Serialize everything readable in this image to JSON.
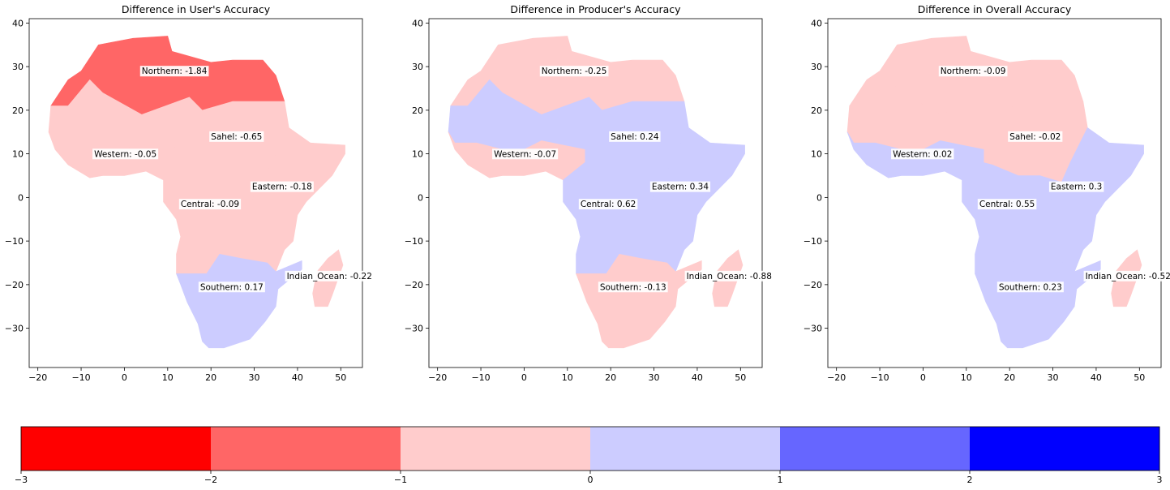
{
  "figure": {
    "colors": [
      "#ff0000",
      "#ff6666",
      "#ffcccc",
      "#ccccff",
      "#6666ff",
      "#0000ff"
    ],
    "colorbar": {
      "bounds": [
        -3,
        -2,
        -1,
        0,
        1,
        2,
        3
      ],
      "tick_labels": [
        "−3",
        "−2",
        "−1",
        "0",
        "1",
        "2",
        "3"
      ]
    },
    "xticks": [
      "−20",
      "−10",
      "0",
      "10",
      "20",
      "30",
      "40",
      "50"
    ],
    "yticks": [
      "40",
      "30",
      "20",
      "10",
      "0",
      "−10",
      "−20",
      "−30"
    ]
  },
  "chart_data": [
    {
      "type": "choropleth",
      "title": "Difference in User's Accuracy",
      "xlim": [
        -22,
        55
      ],
      "ylim": [
        -39,
        41
      ],
      "regions": [
        {
          "name": "Northern",
          "value": -1.84,
          "label": "Northern: -1.84"
        },
        {
          "name": "Sahel",
          "value": -0.65,
          "label": "Sahel: -0.65"
        },
        {
          "name": "Western",
          "value": -0.05,
          "label": "Western: -0.05"
        },
        {
          "name": "Eastern",
          "value": -0.18,
          "label": "Eastern: -0.18"
        },
        {
          "name": "Central",
          "value": -0.09,
          "label": "Central: -0.09"
        },
        {
          "name": "Southern",
          "value": 0.17,
          "label": "Southern: 0.17"
        },
        {
          "name": "Indian_Ocean",
          "value": -0.22,
          "label": "Indian_Ocean: -0.22"
        }
      ]
    },
    {
      "type": "choropleth",
      "title": "Difference in Producer's Accuracy",
      "xlim": [
        -22,
        55
      ],
      "ylim": [
        -39,
        41
      ],
      "regions": [
        {
          "name": "Northern",
          "value": -0.25,
          "label": "Northern: -0.25"
        },
        {
          "name": "Sahel",
          "value": 0.24,
          "label": "Sahel: 0.24"
        },
        {
          "name": "Western",
          "value": -0.07,
          "label": "Western: -0.07"
        },
        {
          "name": "Eastern",
          "value": 0.34,
          "label": "Eastern: 0.34"
        },
        {
          "name": "Central",
          "value": 0.62,
          "label": "Central: 0.62"
        },
        {
          "name": "Southern",
          "value": -0.13,
          "label": "Southern: -0.13"
        },
        {
          "name": "Indian_Ocean",
          "value": -0.88,
          "label": "Indian_Ocean: -0.88"
        }
      ]
    },
    {
      "type": "choropleth",
      "title": "Difference in Overall Accuracy",
      "xlim": [
        -22,
        55
      ],
      "ylim": [
        -39,
        41
      ],
      "regions": [
        {
          "name": "Northern",
          "value": -0.09,
          "label": "Northern: -0.09"
        },
        {
          "name": "Sahel",
          "value": -0.02,
          "label": "Sahel: -0.02"
        },
        {
          "name": "Western",
          "value": 0.02,
          "label": "Western: 0.02"
        },
        {
          "name": "Eastern",
          "value": 0.3,
          "label": "Eastern: 0.3"
        },
        {
          "name": "Central",
          "value": 0.55,
          "label": "Central: 0.55"
        },
        {
          "name": "Southern",
          "value": 0.23,
          "label": "Southern: 0.23"
        },
        {
          "name": "Indian_Ocean",
          "value": -0.52,
          "label": "Indian_Ocean: -0.52"
        }
      ]
    }
  ]
}
